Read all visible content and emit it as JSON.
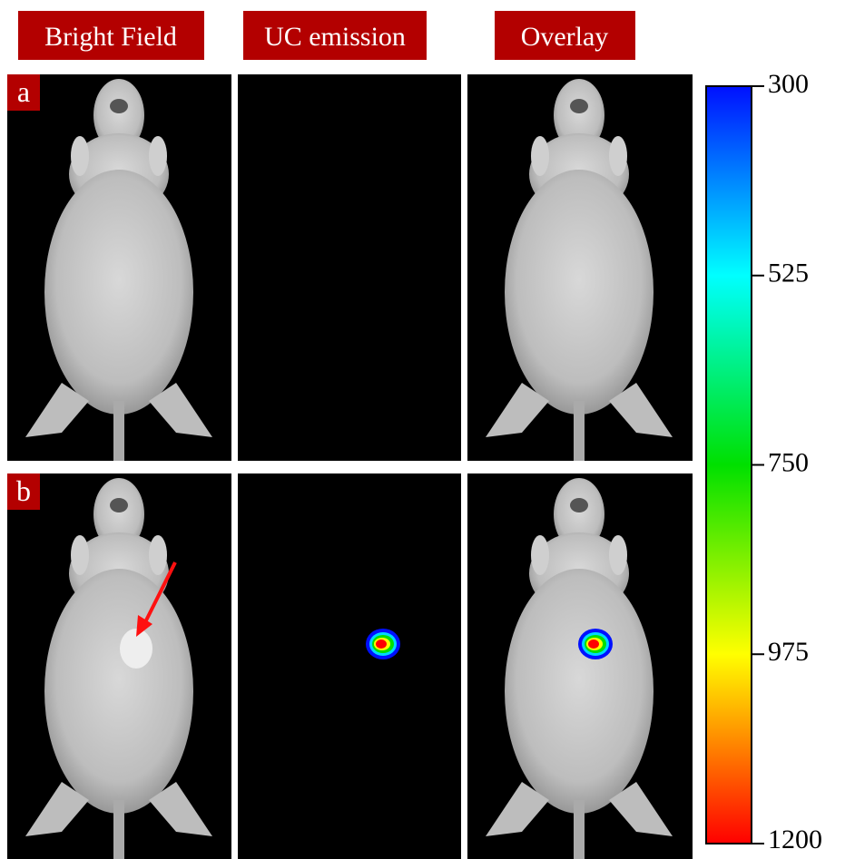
{
  "headers": [
    "Bright Field",
    "UC emission",
    "Overlay"
  ],
  "panels": [
    "a",
    "b"
  ],
  "colorbar": {
    "lim": [
      300,
      1200
    ],
    "ticks": [
      300,
      525,
      750,
      975,
      1200
    ]
  }
}
